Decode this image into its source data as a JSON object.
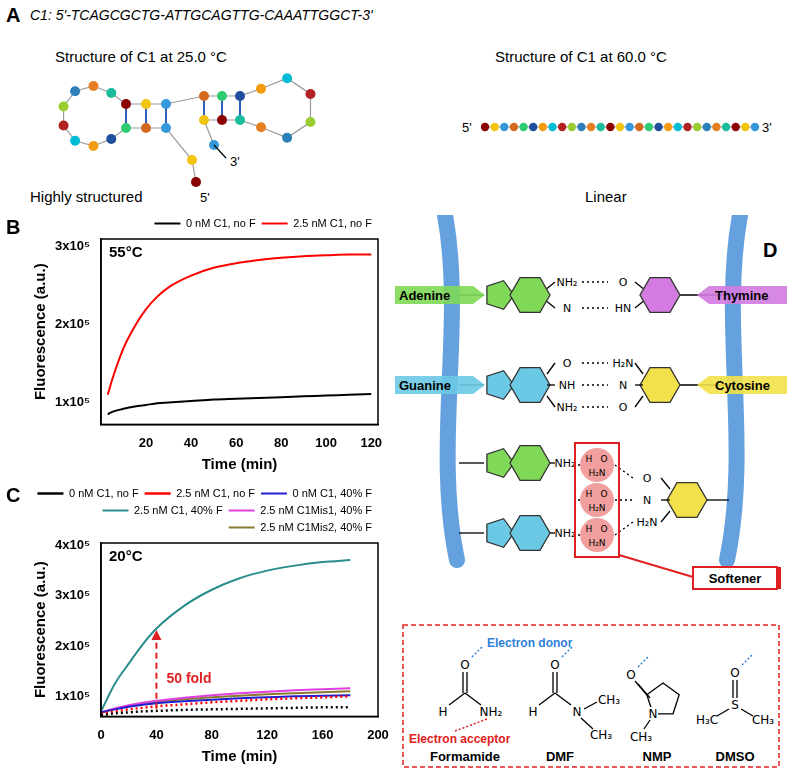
{
  "panel_A": {
    "label": "A",
    "sequence": "C1: 5'-TCAGCGCTG-ATTGCAGTTG-CAAATTGGCT-3'",
    "left": {
      "title": "Structure of C1 at 25.0 °C",
      "caption": "Highly structured",
      "end5": "5'",
      "end3": "3'"
    },
    "right": {
      "title": "Structure of C1 at 60.0 °C",
      "caption": "Linear",
      "end5": "5'",
      "end3": "3'"
    }
  },
  "chart_data": [
    {
      "panel_label": "B",
      "type": "line",
      "x_label": "Time (min)",
      "y_label": "Fluorescence (a.u.)",
      "annotations": [
        {
          "text": "55°C"
        }
      ],
      "xlim": [
        0,
        123
      ],
      "xticks": [
        20,
        40,
        60,
        80,
        100,
        120
      ],
      "ylim": [
        72000,
        310000
      ],
      "yticks": [
        {
          "value": 100000,
          "label": "1x10⁵"
        },
        {
          "value": 200000,
          "label": "2x10⁵"
        },
        {
          "value": 300000,
          "label": "3x10⁵"
        }
      ],
      "legend": "top",
      "grid": false,
      "marker": "none",
      "x": [
        3,
        5,
        10,
        15,
        20,
        25,
        30,
        40,
        50,
        60,
        70,
        80,
        90,
        100,
        110,
        120
      ],
      "series": [
        {
          "name": "0 nM C1, no F",
          "color": "#000000",
          "line_style": "solid",
          "values": [
            85000,
            88000,
            92000,
            95000,
            97000,
            99000,
            100000,
            102000,
            104000,
            105000,
            106000,
            107000,
            108000,
            109000,
            110000,
            111000
          ]
        },
        {
          "name": "2.5 nM C1, no F",
          "color": "#ff0000",
          "line_style": "solid",
          "values": [
            110000,
            130000,
            170000,
            198000,
            220000,
            236000,
            248000,
            263000,
            273000,
            279000,
            283000,
            286000,
            288000,
            289000,
            290000,
            290000
          ]
        }
      ]
    },
    {
      "panel_label": "C",
      "type": "line",
      "x_label": "Time (min)",
      "y_label": "Fluorescence (a.u.)",
      "annotations": [
        {
          "text": "20°C"
        },
        {
          "text": "50 fold",
          "x": 40,
          "y_from": 75000,
          "y_to": 232000,
          "color": "#e02020"
        }
      ],
      "xlim": [
        0,
        200
      ],
      "xticks": [
        0,
        40,
        80,
        120,
        160,
        200
      ],
      "ylim": [
        60000,
        405000
      ],
      "yticks": [
        {
          "value": 100000,
          "label": "1x10⁵"
        },
        {
          "value": 200000,
          "label": "2x10⁵"
        },
        {
          "value": 300000,
          "label": "3x10⁵"
        },
        {
          "value": 400000,
          "label": "4x10⁵"
        }
      ],
      "legend": "top",
      "grid": false,
      "marker": "none",
      "x": [
        0,
        10,
        20,
        30,
        40,
        60,
        80,
        100,
        120,
        140,
        160,
        180
      ],
      "series": [
        {
          "name": "0 nM C1, no F",
          "color": "#000000",
          "line_style": "dotted",
          "values": [
            62000,
            66000,
            68000,
            70000,
            71000,
            73000,
            74000,
            75000,
            76000,
            77000,
            78000,
            78000
          ]
        },
        {
          "name": "2.5 nM C1, no F",
          "color": "#ff0000",
          "line_style": "dotted",
          "values": [
            65000,
            70000,
            74000,
            77000,
            80000,
            84000,
            88000,
            91000,
            94000,
            96000,
            98000,
            100000
          ]
        },
        {
          "name": "0 nM C1, 40% F",
          "color": "#1f1fd0",
          "line_style": "solid",
          "values": [
            68000,
            74000,
            79000,
            83000,
            86000,
            90000,
            93000,
            96000,
            98000,
            100000,
            101000,
            102000
          ]
        },
        {
          "name": "2.5 nM C1, 40% F",
          "color": "#2b8c8c",
          "line_style": "solid",
          "values": [
            70000,
            125000,
            165000,
            203000,
            235000,
            280000,
            312000,
            335000,
            350000,
            360000,
            367000,
            371000
          ]
        },
        {
          "name": "2.5 nM C1Mis1, 40% F",
          "color": "#e040e0",
          "line_style": "solid",
          "values": [
            68000,
            76000,
            82000,
            87000,
            91000,
            97000,
            102000,
            106000,
            109000,
            112000,
            114000,
            116000
          ]
        },
        {
          "name": "2.5 nM C1Mis2, 40% F",
          "color": "#8b7a2e",
          "line_style": "solid",
          "values": [
            67000,
            75000,
            81000,
            86000,
            89000,
            94000,
            98000,
            101000,
            104000,
            106000,
            108000,
            110000
          ]
        }
      ]
    }
  ],
  "panel_D": {
    "label": "D",
    "pairs": [
      {
        "left": {
          "name": "Adenine",
          "atoms": [
            "NH₂",
            "N"
          ]
        },
        "right": {
          "name": "Thymine",
          "atoms": [
            "O",
            "HN"
          ]
        }
      },
      {
        "left": {
          "name": "Guanine",
          "atoms": [
            "O",
            "NH",
            "NH₂"
          ]
        },
        "right": {
          "name": "Cytosine",
          "atoms": [
            "H₂N",
            "N",
            "O"
          ]
        }
      }
    ],
    "softened": {
      "label": "Softener",
      "left_atoms": [
        "NH₂",
        "NH₂"
      ],
      "right_atoms": [
        "O",
        "N",
        "H₂N"
      ],
      "solvent": [
        [
          "H",
          "O",
          "H₂N"
        ],
        [
          "H",
          "O",
          "H₂N"
        ],
        [
          "H",
          "O",
          "H₂N"
        ]
      ]
    },
    "solvents": {
      "donor": "Electron donor",
      "acceptor": "Electron acceptor",
      "molecules": [
        {
          "name": "Formamide",
          "atoms": [
            "O",
            "H",
            "NH₂"
          ]
        },
        {
          "name": "DMF",
          "atoms": [
            "O",
            "H",
            "N",
            "CH₃",
            "CH₃"
          ]
        },
        {
          "name": "NMP",
          "atoms": [
            "O",
            "N",
            "CH₃"
          ]
        },
        {
          "name": "DMSO",
          "atoms": [
            "O",
            "H₃C",
            "S",
            "CH₃"
          ]
        }
      ]
    }
  }
}
